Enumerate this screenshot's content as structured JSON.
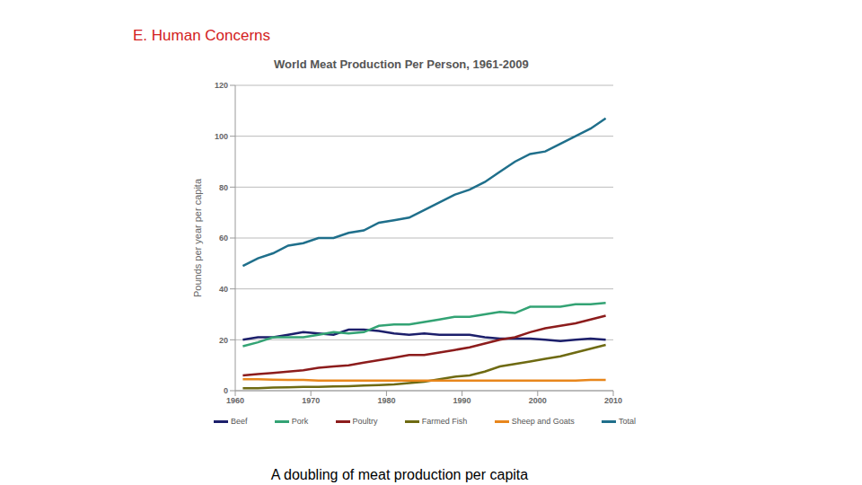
{
  "header": "E. Human Concerns",
  "caption": "A doubling of meat production per capita",
  "chart_data": {
    "type": "line",
    "title": "World Meat Production Per Person, 1961-2009",
    "y_label": "Pounds per year per capita",
    "x": [
      1961,
      1963,
      1965,
      1967,
      1969,
      1971,
      1973,
      1975,
      1977,
      1979,
      1981,
      1983,
      1985,
      1987,
      1989,
      1991,
      1993,
      1995,
      1997,
      1999,
      2001,
      2003,
      2005,
      2007,
      2009
    ],
    "series": [
      {
        "name": "Beef",
        "color": "#1c1f6b",
        "values": [
          20,
          21,
          21,
          22,
          23,
          22.5,
          22,
          24,
          24,
          23.5,
          22.5,
          22,
          22.5,
          22,
          22,
          22,
          21,
          20.5,
          20.5,
          20.5,
          20,
          19.5,
          20,
          20.5,
          20
        ]
      },
      {
        "name": "Pork",
        "color": "#33a374",
        "values": [
          17.5,
          19,
          21,
          21,
          21,
          22,
          23,
          22.5,
          23,
          25.5,
          26,
          26,
          27,
          28,
          29,
          29,
          30,
          31,
          30.5,
          33,
          33,
          33,
          34,
          34,
          34.5
        ]
      },
      {
        "name": "Poultry",
        "color": "#8c1c1c",
        "values": [
          6,
          6.5,
          7,
          7.5,
          8,
          9,
          9.5,
          10,
          11,
          12,
          13,
          14,
          14,
          15,
          16,
          17,
          18.5,
          20,
          21,
          23,
          24.5,
          25.5,
          26.5,
          28,
          29.5
        ]
      },
      {
        "name": "Farmed Fish",
        "color": "#6e6a12",
        "values": [
          1,
          1,
          1.2,
          1.3,
          1.5,
          1.5,
          1.7,
          1.8,
          2,
          2.2,
          2.5,
          3,
          3.5,
          4.5,
          5.5,
          6,
          7.5,
          9.5,
          10.5,
          11.5,
          12.5,
          13.5,
          15,
          16.5,
          18
        ]
      },
      {
        "name": "Sheep and Goats",
        "color": "#e8861c",
        "values": [
          4.5,
          4.5,
          4.3,
          4.2,
          4.2,
          4,
          4,
          4,
          4,
          4,
          4,
          4,
          4,
          4,
          4,
          4,
          4,
          4,
          4,
          4,
          4,
          4,
          4,
          4.2,
          4.2
        ]
      },
      {
        "name": "Total",
        "color": "#1f6f8b",
        "values": [
          49,
          52,
          54,
          57,
          58,
          60,
          60,
          62,
          63,
          66,
          67,
          68,
          71,
          74,
          77,
          79,
          82,
          86,
          90,
          93,
          94,
          97,
          100,
          103,
          107
        ]
      }
    ],
    "xlim": [
      1960,
      2010
    ],
    "xticks": [
      1960,
      1970,
      1980,
      1990,
      2000,
      2010
    ],
    "ylim": [
      0,
      120
    ],
    "yticks": [
      0,
      20,
      40,
      60,
      80,
      100,
      120
    ],
    "grid": true,
    "legend": "bottom"
  }
}
